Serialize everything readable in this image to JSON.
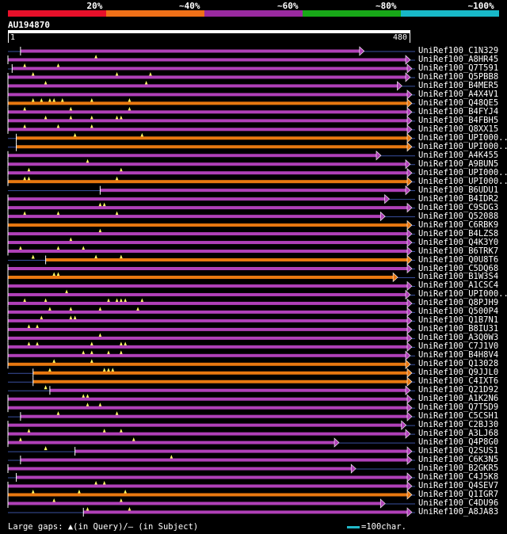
{
  "legend": {
    "segments": [
      {
        "label": "20%",
        "color": "#e8102a"
      },
      {
        "label": "~40%",
        "color": "#f07018"
      },
      {
        "label": "~60%",
        "color": "#9a2aa0"
      },
      {
        "label": "~80%",
        "color": "#18a818"
      },
      {
        "label": "~100%",
        "color": "#18b8c8"
      }
    ]
  },
  "query": {
    "name": "AU194870",
    "start": "1",
    "end": "480",
    "length": 480
  },
  "colors": {
    "purple": "#b040b8",
    "orange": "#e87810",
    "gap": "#ffff66",
    "line": "#3a50a0"
  },
  "hits": [
    {
      "label": "UniRef100_C1N329",
      "s": 15,
      "e": 425,
      "c": "p",
      "g": [
        105
      ]
    },
    {
      "label": "UniRef100_A8HR45",
      "s": 0,
      "e": 480,
      "c": "p",
      "g": [
        20,
        60
      ]
    },
    {
      "label": "UniRef100_Q7T591",
      "s": 5,
      "e": 490,
      "c": "p",
      "g": [
        30,
        130,
        170
      ]
    },
    {
      "label": "UniRef100_Q5PBB8",
      "s": 0,
      "e": 480,
      "c": "p",
      "g": [
        45,
        165
      ]
    },
    {
      "label": "UniRef100_B4MER5",
      "s": 0,
      "e": 470,
      "c": "p",
      "g": []
    },
    {
      "label": "UniRef100_A4X4V1",
      "s": 0,
      "e": 490,
      "c": "p",
      "g": [
        30,
        40,
        50,
        55,
        65,
        100,
        145
      ]
    },
    {
      "label": "UniRef100_Q48QE5",
      "s": 0,
      "e": 490,
      "c": "o",
      "g": [
        20,
        75,
        145
      ]
    },
    {
      "label": "UniRef100_B4FYJ4",
      "s": 0,
      "e": 490,
      "c": "p",
      "g": [
        45,
        75,
        100,
        130,
        135
      ]
    },
    {
      "label": "UniRef100_B4FBH5",
      "s": 0,
      "e": 490,
      "c": "p",
      "g": [
        20,
        60,
        100
      ]
    },
    {
      "label": "UniRef100_Q8XX15",
      "s": 0,
      "e": 490,
      "c": "p",
      "g": [
        80,
        160
      ]
    },
    {
      "label": "UniRef100_UPI000..",
      "s": 10,
      "e": 490,
      "c": "o",
      "g": []
    },
    {
      "label": "UniRef100_UPI000..",
      "s": 10,
      "e": 490,
      "c": "o",
      "g": []
    },
    {
      "label": "UniRef100_A4K455",
      "s": 0,
      "e": 445,
      "c": "p",
      "g": [
        95
      ]
    },
    {
      "label": "UniRef100_A9BUN5",
      "s": 0,
      "e": 480,
      "c": "p",
      "g": [
        25,
        135
      ]
    },
    {
      "label": "UniRef100_UPI000..",
      "s": 0,
      "e": 505,
      "c": "p",
      "g": [
        20,
        25,
        130
      ]
    },
    {
      "label": "UniRef100_UPI000..",
      "s": 0,
      "e": 495,
      "c": "o",
      "g": []
    },
    {
      "label": "UniRef100_B6UDU1",
      "s": 110,
      "e": 480,
      "c": "p",
      "g": []
    },
    {
      "label": "UniRef100_B4IDR2",
      "s": 0,
      "e": 455,
      "c": "p",
      "g": [
        110,
        115
      ]
    },
    {
      "label": "UniRef100_C9SDG3",
      "s": 0,
      "e": 490,
      "c": "p",
      "g": [
        20,
        60,
        130
      ]
    },
    {
      "label": "UniRef100_Q52088",
      "s": 0,
      "e": 450,
      "c": "p",
      "g": []
    },
    {
      "label": "UniRef100_C6RBK9",
      "s": 0,
      "e": 495,
      "c": "o",
      "g": [
        110
      ]
    },
    {
      "label": "UniRef100_B4LZS8",
      "s": 0,
      "e": 495,
      "c": "p",
      "g": [
        75
      ]
    },
    {
      "label": "UniRef100_Q4K3Y0",
      "s": 0,
      "e": 490,
      "c": "p",
      "g": [
        15,
        60,
        90
      ]
    },
    {
      "label": "UniRef100_B6TRK7",
      "s": 0,
      "e": 490,
      "c": "p",
      "g": [
        30,
        105,
        135
      ]
    },
    {
      "label": "UniRef100_Q0U8T6",
      "s": 45,
      "e": 495,
      "c": "o",
      "g": []
    },
    {
      "label": "UniRef100_C5DQ68",
      "s": 0,
      "e": 485,
      "c": "p",
      "g": [
        55,
        60
      ]
    },
    {
      "label": "UniRef100_B1W3S4",
      "s": 0,
      "e": 465,
      "c": "o",
      "g": []
    },
    {
      "label": "UniRef100_A1CSC4",
      "s": 0,
      "e": 490,
      "c": "p",
      "g": [
        70
      ]
    },
    {
      "label": "UniRef100_UPI000..",
      "s": 0,
      "e": 480,
      "c": "p",
      "g": [
        20,
        45,
        120,
        130,
        135,
        140,
        160
      ]
    },
    {
      "label": "UniRef100_Q8PJH9",
      "s": 0,
      "e": 490,
      "c": "p",
      "g": [
        50,
        75,
        110,
        155
      ]
    },
    {
      "label": "UniRef100_Q500P4",
      "s": 0,
      "e": 490,
      "c": "p",
      "g": [
        40,
        75,
        80
      ]
    },
    {
      "label": "UniRef100_Q1B7N1",
      "s": 0,
      "e": 495,
      "c": "p",
      "g": [
        25,
        35
      ]
    },
    {
      "label": "UniRef100_B8IU31",
      "s": 0,
      "e": 490,
      "c": "p",
      "g": [
        110
      ]
    },
    {
      "label": "UniRef100_A3Q0W3",
      "s": 0,
      "e": 495,
      "c": "p",
      "g": [
        25,
        35,
        100,
        135,
        140
      ]
    },
    {
      "label": "UniRef100_C7J1V0",
      "s": 0,
      "e": 490,
      "c": "p",
      "g": [
        90,
        100,
        120,
        135
      ]
    },
    {
      "label": "UniRef100_B4H8V4",
      "s": 0,
      "e": 480,
      "c": "p",
      "g": [
        55,
        100
      ]
    },
    {
      "label": "UniRef100_Q13028",
      "s": 0,
      "e": 480,
      "c": "o",
      "g": [
        50,
        115,
        120,
        125
      ]
    },
    {
      "label": "UniRef100_Q9JJL0",
      "s": 30,
      "e": 490,
      "c": "o",
      "g": []
    },
    {
      "label": "UniRef100_C4IXT6",
      "s": 30,
      "e": 490,
      "c": "o",
      "g": [
        45
      ]
    },
    {
      "label": "UniRef100_Q21D92",
      "s": 50,
      "e": 480,
      "c": "p",
      "g": [
        90,
        95
      ]
    },
    {
      "label": "UniRef100_A1K2N6",
      "s": 0,
      "e": 490,
      "c": "p",
      "g": [
        95,
        110
      ]
    },
    {
      "label": "UniRef100_Q7T5D9",
      "s": 0,
      "e": 490,
      "c": "p",
      "g": [
        60,
        130
      ]
    },
    {
      "label": "UniRef100_C5CSH1",
      "s": 15,
      "e": 490,
      "c": "p",
      "g": []
    },
    {
      "label": "UniRef100_C2BJ30",
      "s": 0,
      "e": 475,
      "c": "p",
      "g": [
        25,
        115,
        135
      ]
    },
    {
      "label": "UniRef100_A3LJ68",
      "s": 0,
      "e": 480,
      "c": "p",
      "g": [
        15,
        150
      ]
    },
    {
      "label": "UniRef100_Q4P8G0",
      "s": 0,
      "e": 395,
      "c": "p",
      "g": [
        45
      ]
    },
    {
      "label": "UniRef100_Q2SUS1",
      "s": 80,
      "e": 490,
      "c": "p",
      "g": [
        195
      ]
    },
    {
      "label": "UniRef100_C6K3N5",
      "s": 15,
      "e": 490,
      "c": "p",
      "g": []
    },
    {
      "label": "UniRef100_B2GKR5",
      "s": 0,
      "e": 415,
      "c": "p",
      "g": []
    },
    {
      "label": "UniRef100_C4J5K8",
      "s": 10,
      "e": 490,
      "c": "p",
      "g": [
        105,
        115
      ]
    },
    {
      "label": "UniRef100_Q4SEV7",
      "s": 0,
      "e": 490,
      "c": "p",
      "g": [
        30,
        85,
        140
      ]
    },
    {
      "label": "UniRef100_Q1IGR7",
      "s": 0,
      "e": 495,
      "c": "o",
      "g": [
        55,
        135
      ]
    },
    {
      "label": "UniRef100_C4DU96",
      "s": 0,
      "e": 450,
      "c": "p",
      "g": [
        95,
        145
      ]
    },
    {
      "label": "UniRef100_A8JA83",
      "s": 90,
      "e": 490,
      "c": "p",
      "g": []
    }
  ],
  "footer": {
    "text": "Large gaps: ▲(in Query)/– (in Subject)",
    "scale_text": "=100char."
  }
}
